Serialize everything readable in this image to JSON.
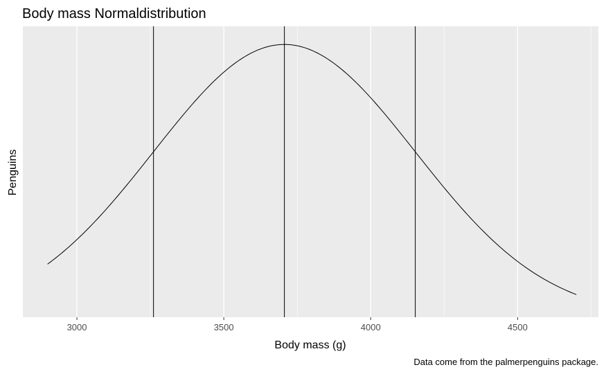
{
  "chart_data": {
    "type": "line",
    "title": "Body mass Normaldistribution",
    "xlabel": "Body mass (g)",
    "ylabel": "Penguins",
    "caption": "Data come from the palmerpenguins package.",
    "x_ticks": [
      3000,
      3500,
      4000,
      4500
    ],
    "xlim": [
      2816,
      4775
    ],
    "ylim": [
      0,
      0.000955
    ],
    "grid": true,
    "legend": "none",
    "series": [
      {
        "curve": "normal-density",
        "mean": 3706.2,
        "sd": 445.5,
        "x_range": [
          2900,
          4700
        ]
      }
    ],
    "vlines": [
      3260.7,
      3706.2,
      4151.7
    ],
    "colors": {
      "panel": "#ebebeb",
      "grid": "#ffffff",
      "line": "#000000"
    }
  }
}
